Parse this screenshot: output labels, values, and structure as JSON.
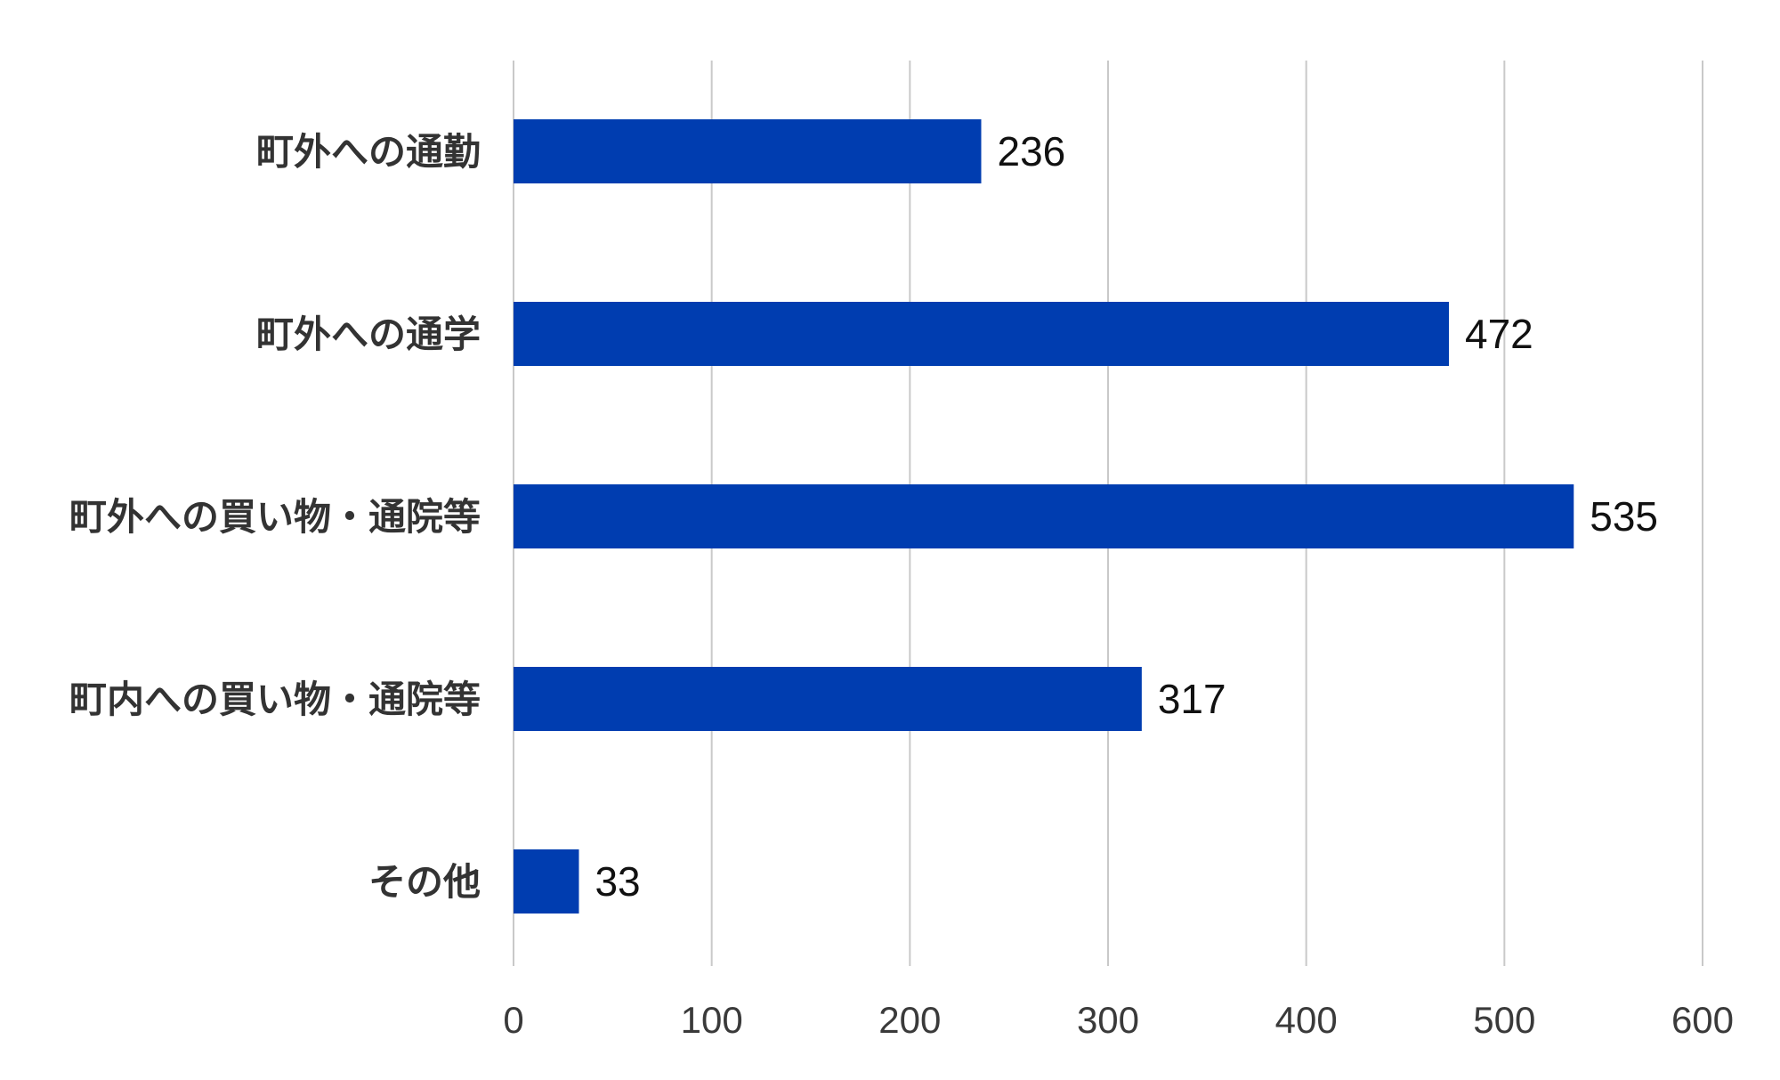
{
  "chart_data": {
    "type": "bar",
    "orientation": "horizontal",
    "categories": [
      "町外への通勤",
      "町外への通学",
      "町外への買い物・通院等",
      "町内への買い物・通院等",
      "その他"
    ],
    "values": [
      236,
      472,
      535,
      317,
      33
    ],
    "xlim": [
      0,
      600
    ],
    "x_ticks": [
      "0",
      "100",
      "200",
      "300",
      "400",
      "500",
      "600"
    ],
    "grid": true,
    "data_labels": true,
    "bar_color": "#003DB0"
  }
}
